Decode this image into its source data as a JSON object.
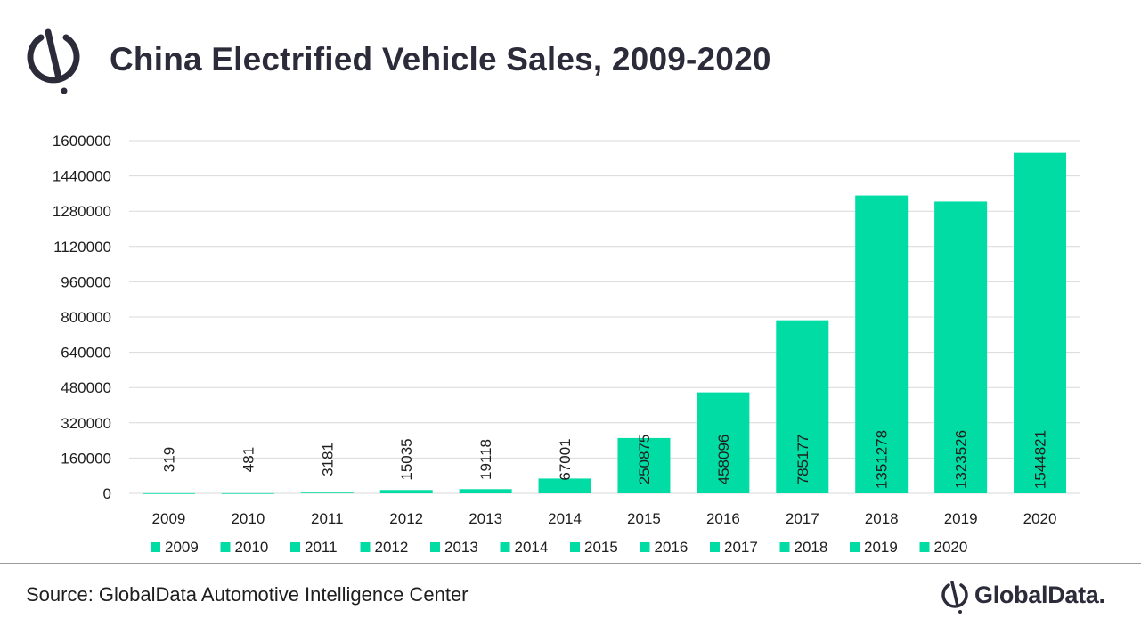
{
  "header": {
    "title": "China Electrified Vehicle Sales, 2009-2020"
  },
  "colors": {
    "bar": "#00dca3",
    "grid": "#d9d9d9",
    "text": "#1e1e1e",
    "brand": "#2b2b3a"
  },
  "chart_data": {
    "type": "bar",
    "title": "China Electrified Vehicle Sales, 2009-2020",
    "categories": [
      "2009",
      "2010",
      "2011",
      "2012",
      "2013",
      "2014",
      "2015",
      "2016",
      "2017",
      "2018",
      "2019",
      "2020"
    ],
    "values": [
      319,
      481,
      3181,
      15035,
      19118,
      67001,
      250875,
      458096,
      785177,
      1351278,
      1323526,
      1544821
    ],
    "value_labels": [
      "319",
      "481",
      "3181",
      "15035",
      "19118",
      "67001",
      "250875",
      "458096",
      "785177",
      "1351278",
      "1323526",
      "1544821"
    ],
    "yticks": [
      "0",
      "160000",
      "320000",
      "480000",
      "640000",
      "800000",
      "960000",
      "1120000",
      "1280000",
      "1440000",
      "1600000"
    ],
    "ylim": [
      0,
      1600000
    ],
    "xlabel": "",
    "ylabel": "",
    "grid": true,
    "legend_position": "bottom",
    "legend": [
      "2009",
      "2010",
      "2011",
      "2012",
      "2013",
      "2014",
      "2015",
      "2016",
      "2017",
      "2018",
      "2019",
      "2020"
    ]
  },
  "footer": {
    "source": "Source: GlobalData Automotive Intelligence Center",
    "brand": "GlobalData."
  },
  "icons": {
    "logo": "globaldata-logo-icon",
    "footer_logo": "globaldata-logo-icon"
  }
}
